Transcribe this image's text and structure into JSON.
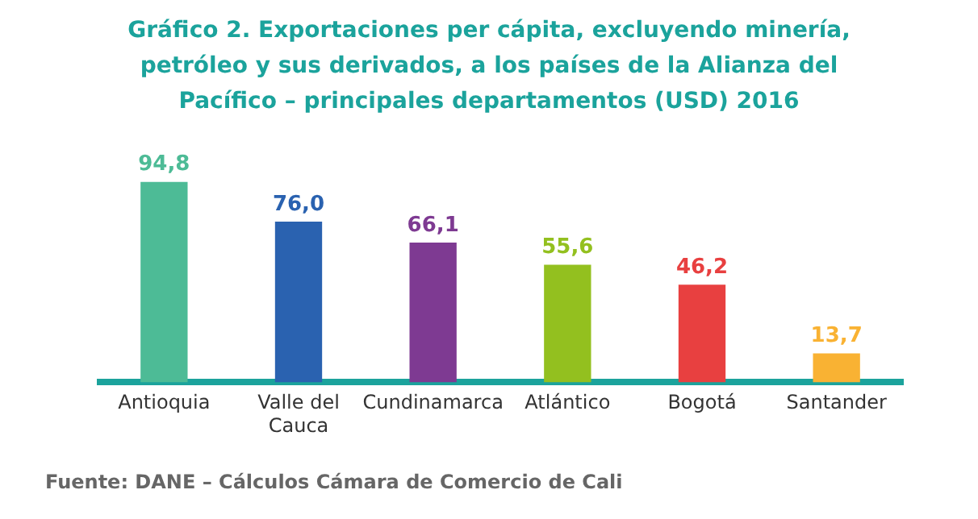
{
  "chart_data": {
    "type": "bar",
    "title": "Gráfico 2. Exportaciones per cápita, excluyendo minería, petróleo y sus derivados, a los países de la Alianza del Pacífico – principales departamentos (USD) 2016",
    "categories": [
      "Antioquia",
      "Valle del Cauca",
      "Cundinamarca",
      "Atlántico",
      "Bogotá",
      "Santander"
    ],
    "values": [
      94.8,
      76.0,
      66.1,
      55.6,
      46.2,
      13.7
    ],
    "value_labels": [
      "94,8",
      "76,0",
      "66,1",
      "55,6",
      "46,2",
      "13,7"
    ],
    "colors": [
      "#4dbb96",
      "#2a62b0",
      "#7e3a92",
      "#93c01f",
      "#e84040",
      "#f9b233"
    ],
    "grid": false,
    "legend": false,
    "annotations": [
      "Fuente: DANE – Cálculos Cámara de Comercio de Cali"
    ]
  }
}
